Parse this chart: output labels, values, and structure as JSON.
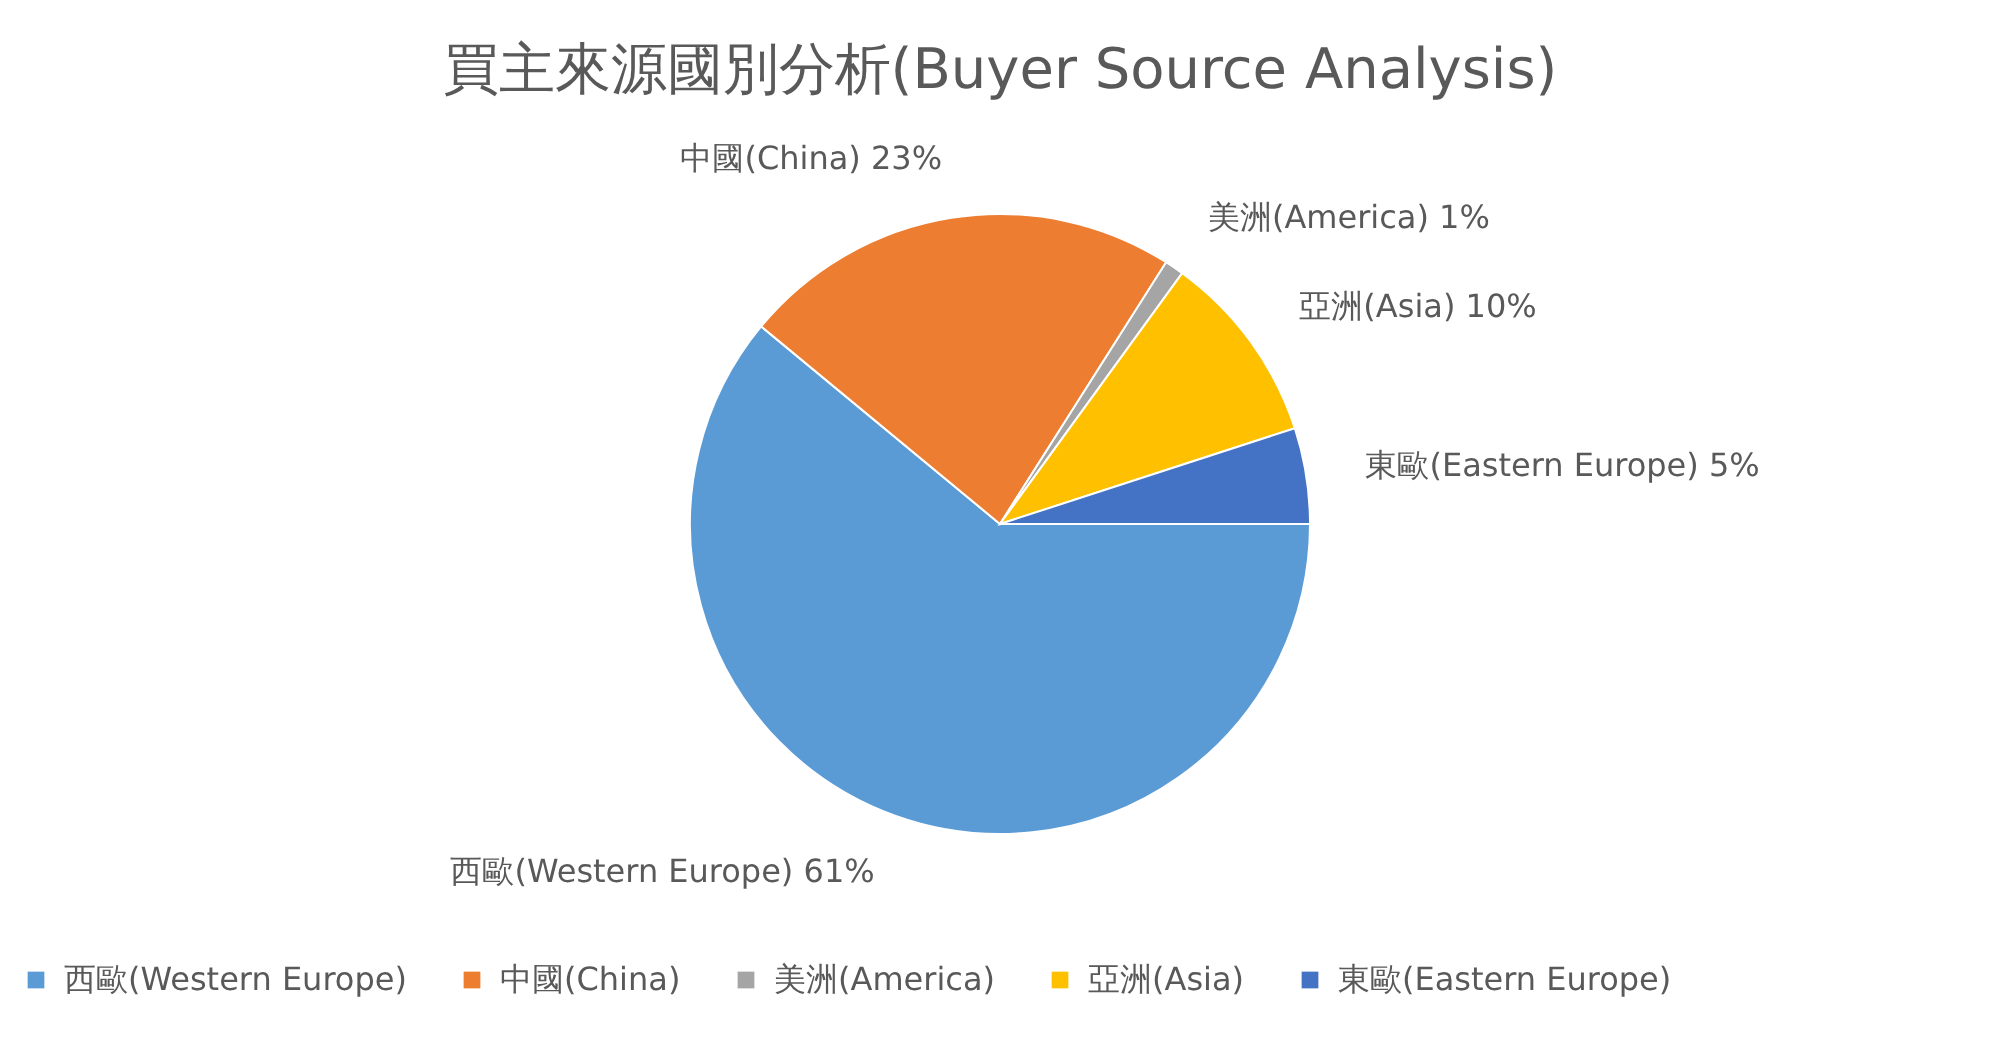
{
  "chart_data": {
    "type": "pie",
    "title": "買主來源國別分析(Buyer Source Analysis)",
    "categories": [
      "西歐(Western Europe)",
      "中國(China)",
      "美洲(America)",
      "亞洲(Asia)",
      "東歐(Eastern Europe)"
    ],
    "values": [
      61,
      23,
      1,
      10,
      5
    ],
    "colors": [
      "#5b9bd5",
      "#ed7d31",
      "#a5a5a5",
      "#ffc000",
      "#4472c4"
    ],
    "value_labels": [
      "西歐(Western Europe) 61%",
      "中國(China) 23%",
      "美洲(America) 1%",
      "亞洲(Asia) 10%",
      "東歐(Eastern Europe) 5%"
    ],
    "legend": "bottom"
  }
}
